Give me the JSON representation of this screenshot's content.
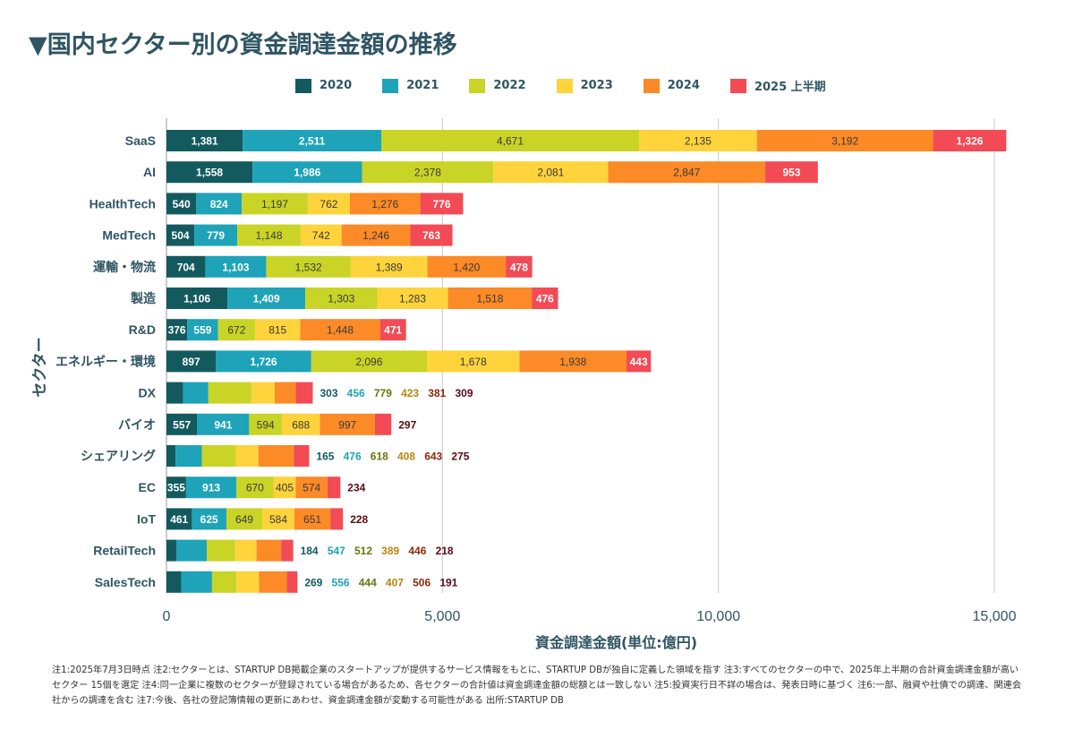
{
  "title": "▼国内セクター別の資金調達金額の推移",
  "chart_data": {
    "type": "bar",
    "orientation": "horizontal",
    "stacked": true,
    "title": "▼国内セクター別の資金調達金額の推移",
    "xlabel": "資金調達金額(単位:億円)",
    "ylabel": "セクター",
    "xlim": [
      0,
      15000
    ],
    "xticks": [
      "0",
      "5,000",
      "10,000",
      "15,000"
    ],
    "xtick_values": [
      0,
      5000,
      10000,
      15000
    ],
    "grid": "vertical",
    "legend_placement": "top",
    "categories": [
      "SaaS",
      "AI",
      "HealthTech",
      "MedTech",
      "運輸・物流",
      "製造",
      "R&D",
      "エネルギー・環境",
      "DX",
      "バイオ",
      "シェアリング",
      "EC",
      "IoT",
      "RetailTech",
      "SalesTech"
    ],
    "label_outside": [
      false,
      false,
      false,
      false,
      false,
      false,
      false,
      false,
      true,
      false,
      true,
      false,
      false,
      true,
      true
    ],
    "series": [
      {
        "name": "2020",
        "color": "#135a5f",
        "label_color": "#135a5f",
        "values": [
          1381,
          1558,
          540,
          504,
          704,
          1106,
          376,
          897,
          303,
          557,
          165,
          355,
          461,
          184,
          269
        ]
      },
      {
        "name": "2021",
        "color": "#1ea3b9",
        "label_color": "#1ea3b9",
        "values": [
          2511,
          1986,
          824,
          779,
          1103,
          1409,
          559,
          1726,
          456,
          941,
          476,
          913,
          625,
          547,
          556
        ]
      },
      {
        "name": "2022",
        "color": "#c9d427",
        "label_color": "#6b7310",
        "values": [
          4671,
          2378,
          1197,
          1148,
          1532,
          1303,
          672,
          2096,
          779,
          594,
          618,
          670,
          649,
          512,
          444
        ]
      },
      {
        "name": "2023",
        "color": "#fed33c",
        "label_color": "#b8860b",
        "values": [
          2135,
          2081,
          762,
          742,
          1389,
          1283,
          815,
          1678,
          423,
          688,
          408,
          405,
          584,
          389,
          407
        ]
      },
      {
        "name": "2024",
        "color": "#fc8a27",
        "label_color": "#8a2a0a",
        "values": [
          3192,
          2847,
          1276,
          1246,
          1420,
          1518,
          1448,
          1938,
          381,
          997,
          643,
          574,
          651,
          446,
          506
        ]
      },
      {
        "name": "2025上半期",
        "color": "#f24b55",
        "label_color": "#5a0a10",
        "values": [
          1326,
          953,
          776,
          763,
          478,
          476,
          471,
          443,
          309,
          297,
          275,
          234,
          228,
          218,
          191
        ]
      }
    ],
    "label_overrides": {
      "9": [
        5
      ],
      "11": [
        5
      ],
      "12": [
        5
      ]
    }
  },
  "legend": [
    "2020",
    "2021",
    "2022",
    "2023",
    "2024",
    "2025 上半期"
  ],
  "notes": "注1:2025年7月3日時点 注2:セクターとは、STARTUP DB掲載企業のスタートアップが提供するサービス情報をもとに、STARTUP DBが独自に定義した領域を指す 注3:すべてのセクターの中で、2025年上半期の合計資金調達金額が高いセクター 15個を選定 注4:同一企業に複数のセクターが登録されている場合があるため、各セクターの合計値は資金調達金額の総額とは一致しない 注5:投資実行日不詳の場合は、発表日時に基づく 注6:一部、融資や社債での調達、関連会社からの調達を含む 注7:今後、各社の登記簿情報の更新にあわせ、資金調達金額が変動する可能性がある 出所:STARTUP DB"
}
